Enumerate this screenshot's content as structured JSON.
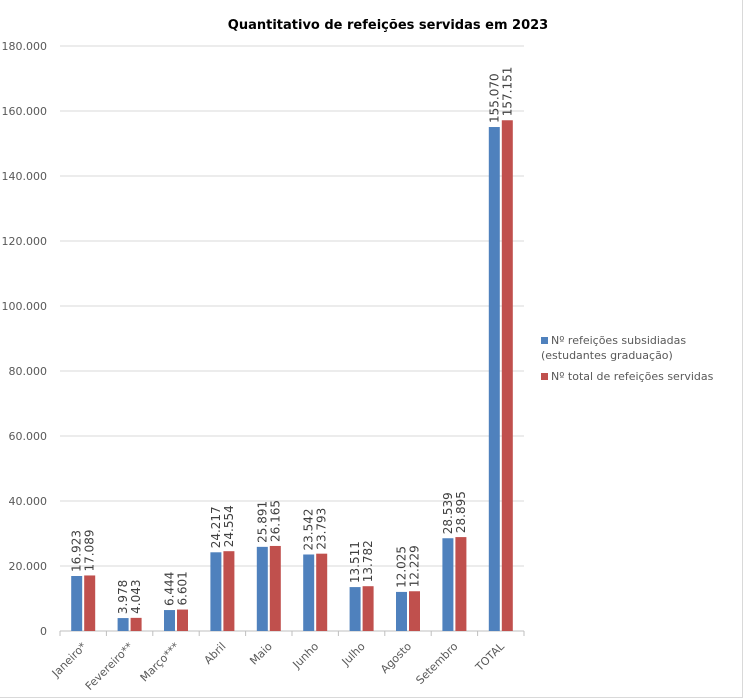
{
  "chart_data": {
    "type": "bar",
    "title": "Quantitativo de refeições servidas em 2023",
    "xlabel": "",
    "ylabel": "",
    "ylim": [
      0,
      180000
    ],
    "yticks": [
      "0",
      "20.000",
      "40.000",
      "60.000",
      "80.000",
      "100.000",
      "120.000",
      "140.000",
      "160.000",
      "180.000"
    ],
    "grid": true,
    "legend_position": "right",
    "categories": [
      "Janeiro*",
      "Fevereiro**",
      "Março***",
      "Abril",
      "Maio",
      "Junho",
      "Julho",
      "Agosto",
      "Setembro",
      "TOTAL"
    ],
    "series": [
      {
        "name": "Nº refeições subsidiadas (estudantes graduação)",
        "color": "#4f81bd",
        "values": [
          16923,
          3978,
          6444,
          24217,
          25891,
          23542,
          13511,
          12025,
          28539,
          155070
        ],
        "labels": [
          "16.923",
          "3.978",
          "6.444",
          "24.217",
          "25.891",
          "23.542",
          "13.511",
          "12.025",
          "28.539",
          "155.070"
        ]
      },
      {
        "name": "Nº total de refeições servidas",
        "color": "#c0504d",
        "values": [
          17089,
          4043,
          6601,
          24554,
          26165,
          23793,
          13782,
          12229,
          28895,
          157151
        ],
        "labels": [
          "17.089",
          "4.043",
          "6.601",
          "24.554",
          "26.165",
          "23.793",
          "13.782",
          "12.229",
          "28.895",
          "157.151"
        ]
      }
    ]
  }
}
